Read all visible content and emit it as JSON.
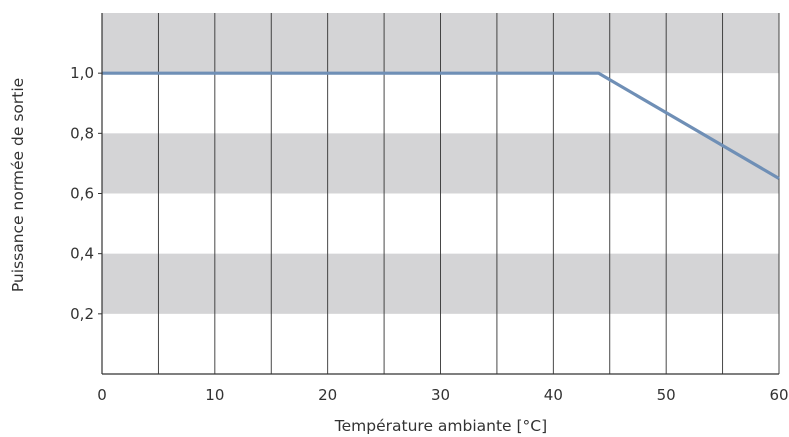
{
  "chart_data": {
    "type": "line",
    "title": "",
    "xlabel": "Température ambiante [°C]",
    "ylabel": "Puissance normée de sortie",
    "xlim": [
      0,
      60
    ],
    "ylim": [
      0,
      1.2
    ],
    "x_ticks": [
      0,
      10,
      20,
      30,
      40,
      50,
      60
    ],
    "x_tick_labels": [
      "0",
      "10",
      "20",
      "30",
      "40",
      "50",
      "60"
    ],
    "x_gridlines": [
      0,
      5,
      10,
      15,
      20,
      25,
      30,
      35,
      40,
      45,
      50,
      55,
      60
    ],
    "y_ticks": [
      0.2,
      0.4,
      0.6,
      0.8,
      1.0
    ],
    "y_tick_labels": [
      "0,2",
      "0,4",
      "0,6",
      "0,8",
      "1,0"
    ],
    "grid": true,
    "shaded_y_bands": [
      [
        0.2,
        0.4
      ],
      [
        0.6,
        0.8
      ],
      [
        1.0,
        1.2
      ]
    ],
    "colors": {
      "band": "#d4d4d6",
      "line": "#6f8fb6",
      "axis": "#333333"
    },
    "series": [
      {
        "x": [
          0,
          44,
          60
        ],
        "values": [
          1.0,
          1.0,
          0.65
        ]
      }
    ]
  }
}
